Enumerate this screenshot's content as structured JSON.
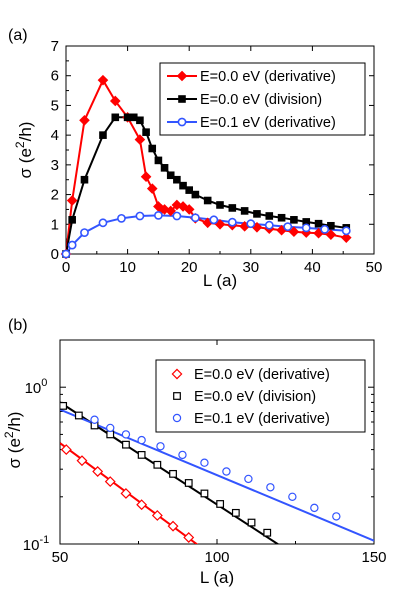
{
  "chart_data": [
    {
      "type": "line",
      "panel_label": "(a)",
      "xlabel": "L (a)",
      "ylabel": "σ (e²/h)",
      "ylabel_parts": {
        "pre": "σ (e",
        "sup": "2",
        "post": "/h)"
      },
      "xlim": [
        0,
        50
      ],
      "ylim": [
        0,
        7
      ],
      "xticks": [
        0,
        10,
        20,
        30,
        40,
        50
      ],
      "yticks": [
        0,
        1,
        2,
        3,
        4,
        5,
        6,
        7
      ],
      "legend_position": "top-right",
      "colors": {
        "red": "#ff0000",
        "black": "#000000",
        "blue": "#3355ff"
      },
      "series": [
        {
          "name": "E=0.0 eV (derivative)",
          "color": "#ff0000",
          "marker": "diamond",
          "x": [
            0,
            1,
            3,
            6,
            8,
            10,
            12,
            13,
            14,
            15,
            15.5,
            16,
            17,
            18,
            19,
            20,
            21,
            23,
            25,
            27,
            29,
            31,
            33,
            35,
            37,
            39,
            41,
            43,
            45.5
          ],
          "y": [
            0,
            1.8,
            4.5,
            5.85,
            5.15,
            4.6,
            3.85,
            2.6,
            2.2,
            1.6,
            1.5,
            1.5,
            1.45,
            1.65,
            1.6,
            1.5,
            1.2,
            1.05,
            1.0,
            0.97,
            0.93,
            0.9,
            0.85,
            0.8,
            0.75,
            0.72,
            0.7,
            0.65,
            0.55
          ]
        },
        {
          "name": "E=0.0 eV (division)",
          "color": "#000000",
          "marker": "square",
          "x": [
            0,
            1,
            3,
            6,
            8,
            10,
            11,
            12,
            13,
            14,
            15,
            16,
            17,
            18,
            19,
            20,
            21,
            23,
            25,
            27,
            29,
            31,
            33,
            35,
            37,
            39,
            41,
            43,
            45.5
          ],
          "y": [
            0,
            1.15,
            2.5,
            4.0,
            4.6,
            4.6,
            4.6,
            4.5,
            4.1,
            3.55,
            3.15,
            2.9,
            2.65,
            2.5,
            2.3,
            2.15,
            2.0,
            1.8,
            1.65,
            1.55,
            1.45,
            1.35,
            1.28,
            1.22,
            1.15,
            1.08,
            1.02,
            0.95,
            0.88
          ]
        },
        {
          "name": "E=0.1 eV (derivative)",
          "color": "#3355ff",
          "marker": "circle",
          "x": [
            0,
            1,
            3,
            6,
            9,
            12,
            15,
            18,
            21,
            24,
            27,
            30,
            33,
            36,
            39,
            42,
            45.5
          ],
          "y": [
            0,
            0.3,
            0.72,
            1.05,
            1.2,
            1.28,
            1.3,
            1.28,
            1.22,
            1.15,
            1.07,
            1.02,
            0.97,
            0.92,
            0.88,
            0.83,
            0.78
          ]
        }
      ]
    },
    {
      "type": "scatter",
      "panel_label": "(b)",
      "xlabel": "L (a)",
      "ylabel": "σ (e²/h)",
      "ylabel_parts": {
        "pre": "σ (e",
        "sup": "2",
        "post": "/h)"
      },
      "xlim": [
        50,
        150
      ],
      "ylim": [
        0.1,
        2.0
      ],
      "xscale": "linear",
      "yscale": "log",
      "xticks": [
        50,
        100,
        150
      ],
      "ytick_labels": [
        {
          "value": 0.1,
          "base": "10",
          "exp": "-1"
        },
        {
          "value": 1.0,
          "base": "10",
          "exp": "0"
        }
      ],
      "legend_position": "top-right",
      "series": [
        {
          "name": "E=0.0 eV (derivative)",
          "color": "#ff0000",
          "marker": "diamond-open",
          "x": [
            52,
            57,
            62,
            66,
            71,
            76,
            81,
            86,
            91
          ],
          "y": [
            0.4,
            0.34,
            0.29,
            0.25,
            0.21,
            0.178,
            0.152,
            0.13,
            0.11
          ],
          "fit": {
            "x": [
              50,
              95
            ],
            "y": [
              0.44,
              0.095
            ]
          }
        },
        {
          "name": "E=0.0 eV (division)",
          "color": "#000000",
          "marker": "square-open",
          "x": [
            51,
            56,
            61,
            66,
            71,
            76,
            81,
            86,
            91,
            96,
            101,
            106,
            111,
            116
          ],
          "y": [
            0.76,
            0.66,
            0.57,
            0.5,
            0.43,
            0.37,
            0.32,
            0.28,
            0.245,
            0.21,
            0.18,
            0.158,
            0.137,
            0.118
          ],
          "fit": {
            "x": [
              50,
              120
            ],
            "y": [
              0.8,
              0.098
            ]
          }
        },
        {
          "name": "E=0.1 eV (derivative)",
          "color": "#3355ff",
          "marker": "circle-open",
          "x": [
            61,
            66,
            71,
            76,
            82,
            89,
            96,
            103,
            110,
            117,
            124,
            131,
            138
          ],
          "y": [
            0.62,
            0.55,
            0.5,
            0.46,
            0.42,
            0.37,
            0.33,
            0.29,
            0.26,
            0.23,
            0.2,
            0.17,
            0.15
          ],
          "fit": {
            "x": [
              50,
              150
            ],
            "y": [
              0.72,
              0.105
            ]
          }
        }
      ]
    }
  ]
}
